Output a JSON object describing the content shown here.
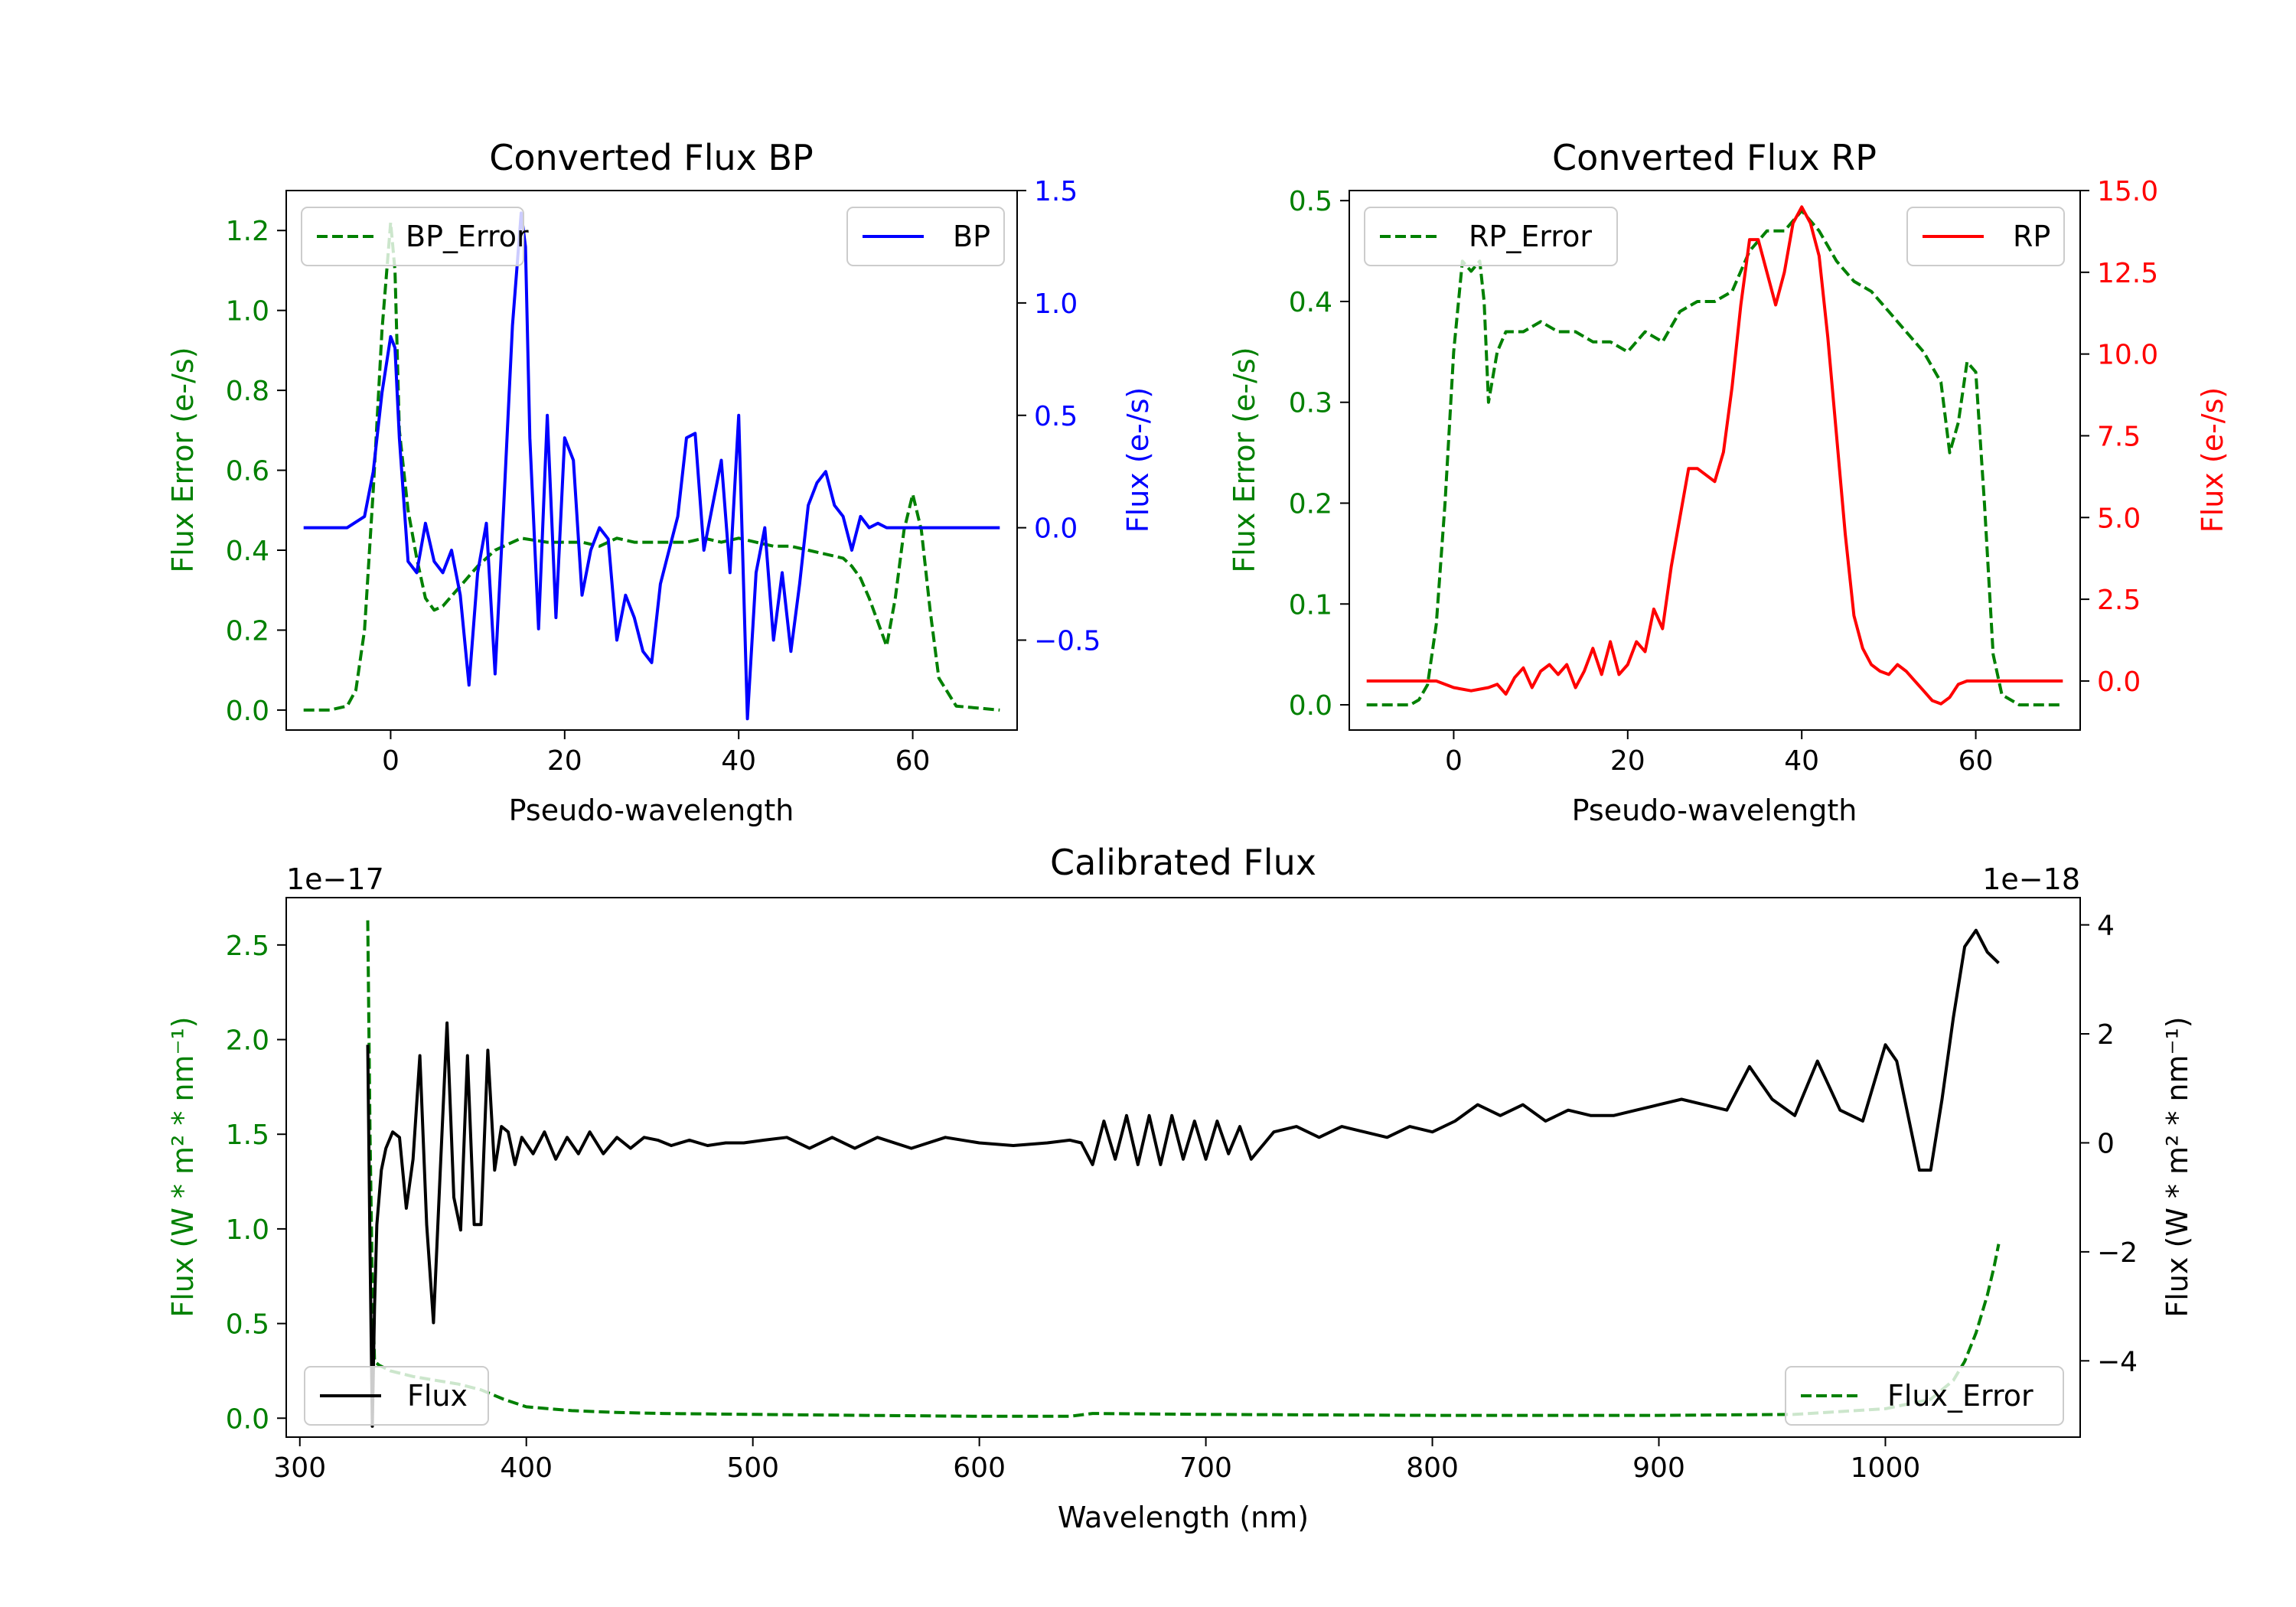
{
  "chart_data": [
    {
      "id": "bp",
      "type": "line",
      "title": "Converted Flux BP",
      "xlabel": "Pseudo-wavelength",
      "ylabel_left": "Flux Error (e-/s)",
      "ylabel_right": "Flux (e-/s)",
      "xlim": [
        -12,
        72
      ],
      "xticks": [
        0,
        20,
        40,
        60
      ],
      "ylim_left": [
        -0.05,
        1.3
      ],
      "yticks_left": [
        0.0,
        0.2,
        0.4,
        0.6,
        0.8,
        1.0,
        1.2
      ],
      "ylim_right": [
        -0.9,
        1.5
      ],
      "yticks_right": [
        -0.5,
        0.0,
        0.5,
        1.0,
        1.5
      ],
      "left_axis_color": "#008000",
      "right_axis_color": "#0000ff",
      "series": [
        {
          "name": "BP_Error",
          "axis": "left",
          "color": "#008000",
          "dash": true,
          "legend_loc": "upper left",
          "x": [
            -10,
            -7,
            -5,
            -4,
            -3,
            -2,
            -1,
            0,
            0.5,
            1,
            2,
            3,
            4,
            5,
            6,
            8,
            10,
            12,
            15,
            18,
            20,
            22,
            24,
            26,
            28,
            30,
            32,
            34,
            36,
            38,
            40,
            42,
            44,
            46,
            48,
            50,
            52,
            53,
            54,
            55,
            56,
            57,
            58,
            59,
            60,
            61,
            62,
            63,
            65,
            70
          ],
          "values": [
            0.0,
            0.0,
            0.01,
            0.05,
            0.2,
            0.55,
            0.95,
            1.22,
            1.1,
            0.7,
            0.5,
            0.38,
            0.28,
            0.25,
            0.26,
            0.31,
            0.36,
            0.4,
            0.43,
            0.42,
            0.42,
            0.42,
            0.41,
            0.43,
            0.42,
            0.42,
            0.42,
            0.42,
            0.43,
            0.42,
            0.43,
            0.42,
            0.41,
            0.41,
            0.4,
            0.39,
            0.38,
            0.36,
            0.33,
            0.28,
            0.22,
            0.16,
            0.28,
            0.45,
            0.54,
            0.45,
            0.25,
            0.08,
            0.01,
            0.0
          ]
        },
        {
          "name": "BP",
          "axis": "right",
          "color": "#0000ff",
          "dash": false,
          "legend_loc": "upper right",
          "x": [
            -10,
            -5,
            -3,
            -2,
            -1,
            0,
            0.5,
            1,
            2,
            3,
            4,
            5,
            6,
            7,
            8,
            9,
            10,
            11,
            12,
            13,
            14,
            15,
            15.5,
            16,
            17,
            18,
            19,
            20,
            21,
            22,
            23,
            24,
            25,
            26,
            27,
            28,
            29,
            30,
            31,
            32,
            33,
            34,
            35,
            36,
            37,
            38,
            39,
            40,
            41,
            42,
            43,
            44,
            45,
            46,
            47,
            48,
            49,
            50,
            51,
            52,
            53,
            54,
            55,
            56,
            57,
            58,
            59,
            60,
            61,
            62,
            64,
            70
          ],
          "values": [
            0.0,
            0.0,
            0.05,
            0.25,
            0.6,
            0.85,
            0.8,
            0.4,
            -0.15,
            -0.2,
            0.02,
            -0.15,
            -0.2,
            -0.1,
            -0.3,
            -0.7,
            -0.2,
            0.02,
            -0.65,
            0.1,
            0.9,
            1.4,
            1.25,
            0.4,
            -0.45,
            0.5,
            -0.4,
            0.4,
            0.3,
            -0.3,
            -0.1,
            0.0,
            -0.05,
            -0.5,
            -0.3,
            -0.4,
            -0.55,
            -0.6,
            -0.25,
            -0.1,
            0.05,
            0.4,
            0.42,
            -0.1,
            0.1,
            0.3,
            -0.2,
            0.5,
            -0.85,
            -0.2,
            0.0,
            -0.5,
            -0.2,
            -0.55,
            -0.25,
            0.1,
            0.2,
            0.25,
            0.1,
            0.05,
            -0.1,
            0.05,
            0.0,
            0.02,
            0.0,
            0.0,
            0.0,
            0.0,
            0.0,
            0.0,
            0.0,
            0.0
          ]
        }
      ]
    },
    {
      "id": "rp",
      "type": "line",
      "title": "Converted Flux RP",
      "xlabel": "Pseudo-wavelength",
      "ylabel_left": "Flux Error (e-/s)",
      "ylabel_right": "Flux (e-/s)",
      "xlim": [
        -12,
        72
      ],
      "xticks": [
        0,
        20,
        40,
        60
      ],
      "ylim_left": [
        -0.025,
        0.51
      ],
      "yticks_left": [
        0.0,
        0.1,
        0.2,
        0.3,
        0.4,
        0.5
      ],
      "ylim_right": [
        -1.5,
        15.0
      ],
      "yticks_right": [
        0.0,
        2.5,
        5.0,
        7.5,
        10.0,
        12.5,
        15.0
      ],
      "left_axis_color": "#008000",
      "right_axis_color": "#ff0000",
      "series": [
        {
          "name": "RP_Error",
          "axis": "left",
          "color": "#008000",
          "dash": true,
          "legend_loc": "upper left",
          "x": [
            -10,
            -5,
            -4,
            -3,
            -2,
            -1,
            0,
            1,
            2,
            3,
            3.5,
            4,
            5,
            6,
            8,
            10,
            12,
            14,
            16,
            18,
            20,
            22,
            24,
            26,
            28,
            30,
            32,
            34,
            36,
            38,
            40,
            42,
            44,
            46,
            48,
            50,
            52,
            54,
            56,
            57,
            58,
            59,
            60,
            61,
            62,
            63,
            65,
            70
          ],
          "values": [
            0.0,
            0.0,
            0.005,
            0.02,
            0.08,
            0.2,
            0.35,
            0.44,
            0.43,
            0.44,
            0.4,
            0.3,
            0.35,
            0.37,
            0.37,
            0.38,
            0.37,
            0.37,
            0.36,
            0.36,
            0.35,
            0.37,
            0.36,
            0.39,
            0.4,
            0.4,
            0.41,
            0.45,
            0.47,
            0.47,
            0.49,
            0.47,
            0.44,
            0.42,
            0.41,
            0.39,
            0.37,
            0.35,
            0.32,
            0.25,
            0.28,
            0.34,
            0.33,
            0.2,
            0.05,
            0.01,
            0.0,
            0.0
          ]
        },
        {
          "name": "RP",
          "axis": "right",
          "color": "#ff0000",
          "dash": false,
          "legend_loc": "upper right",
          "x": [
            -10,
            -5,
            -2,
            0,
            2,
            4,
            5,
            6,
            7,
            8,
            9,
            10,
            11,
            12,
            13,
            14,
            15,
            16,
            17,
            18,
            19,
            20,
            21,
            22,
            23,
            24,
            25,
            26,
            27,
            28,
            29,
            30,
            31,
            32,
            33,
            34,
            35,
            36,
            37,
            38,
            39,
            40,
            41,
            42,
            43,
            44,
            45,
            46,
            47,
            48,
            49,
            50,
            51,
            52,
            53,
            54,
            55,
            56,
            57,
            58,
            59,
            60,
            62,
            65,
            70
          ],
          "values": [
            0.0,
            0.0,
            0.0,
            -0.2,
            -0.3,
            -0.2,
            -0.1,
            -0.4,
            0.1,
            0.4,
            -0.2,
            0.3,
            0.5,
            0.2,
            0.5,
            -0.2,
            0.3,
            1.0,
            0.2,
            1.2,
            0.2,
            0.5,
            1.2,
            0.9,
            2.2,
            1.6,
            3.5,
            5.0,
            6.5,
            6.5,
            6.3,
            6.1,
            7.0,
            9.0,
            11.5,
            13.5,
            13.5,
            12.5,
            11.5,
            12.5,
            14.0,
            14.5,
            14.0,
            13.0,
            10.5,
            7.5,
            4.5,
            2.0,
            1.0,
            0.5,
            0.3,
            0.2,
            0.5,
            0.3,
            0.0,
            -0.3,
            -0.6,
            -0.7,
            -0.5,
            -0.1,
            0.0,
            0.0,
            0.0,
            0.0,
            0.0
          ]
        }
      ]
    },
    {
      "id": "calibrated",
      "type": "line",
      "title": "Calibrated Flux",
      "xlabel": "Wavelength (nm)",
      "ylabel_left": "Flux (W * m² * nm⁻¹)",
      "ylabel_right": "Flux (W * m² * nm⁻¹)",
      "left_scale_label": "1e−17",
      "right_scale_label": "1e−18",
      "xlim": [
        294,
        1086
      ],
      "xticks": [
        300,
        400,
        500,
        600,
        700,
        800,
        900,
        1000
      ],
      "ylim_left": [
        -0.1,
        2.75
      ],
      "yticks_left": [
        0.0,
        0.5,
        1.0,
        1.5,
        2.0,
        2.5
      ],
      "ylim_right": [
        -5.4,
        4.5
      ],
      "yticks_right": [
        -4,
        -2,
        0,
        2,
        4
      ],
      "left_axis_color": "#008000",
      "right_axis_color": "#000000",
      "series": [
        {
          "name": "Flux_Error",
          "axis": "left",
          "color": "#008000",
          "dash": true,
          "legend_loc": "lower right",
          "x": [
            330,
            331,
            332,
            333,
            335,
            340,
            350,
            360,
            370,
            380,
            390,
            400,
            420,
            440,
            460,
            500,
            550,
            600,
            640,
            650,
            700,
            800,
            900,
            960,
            1000,
            1020,
            1030,
            1035,
            1040,
            1045,
            1048,
            1050
          ],
          "values": [
            2.63,
            1.5,
            0.7,
            0.3,
            0.28,
            0.25,
            0.22,
            0.2,
            0.18,
            0.15,
            0.1,
            0.06,
            0.04,
            0.03,
            0.025,
            0.02,
            0.015,
            0.01,
            0.01,
            0.025,
            0.02,
            0.015,
            0.015,
            0.02,
            0.05,
            0.1,
            0.2,
            0.3,
            0.45,
            0.65,
            0.8,
            0.92
          ]
        },
        {
          "name": "Flux",
          "axis": "right",
          "color": "#000000",
          "dash": false,
          "legend_loc": "lower left",
          "x": [
            330,
            331,
            332,
            333,
            334,
            336,
            338,
            341,
            344,
            347,
            350,
            353,
            356,
            359,
            362,
            365,
            368,
            371,
            374,
            377,
            380,
            383,
            386,
            389,
            392,
            395,
            398,
            403,
            408,
            413,
            418,
            423,
            428,
            434,
            440,
            446,
            452,
            458,
            464,
            472,
            480,
            488,
            496,
            505,
            515,
            525,
            535,
            545,
            555,
            570,
            585,
            600,
            615,
            630,
            640,
            645,
            650,
            655,
            660,
            665,
            670,
            675,
            680,
            685,
            690,
            695,
            700,
            705,
            710,
            715,
            720,
            730,
            740,
            750,
            760,
            770,
            780,
            790,
            800,
            810,
            820,
            830,
            840,
            850,
            860,
            870,
            880,
            890,
            900,
            910,
            920,
            930,
            940,
            950,
            960,
            970,
            980,
            990,
            1000,
            1005,
            1010,
            1015,
            1020,
            1025,
            1030,
            1035,
            1040,
            1045,
            1050
          ],
          "values": [
            1.8,
            -2.0,
            -5.2,
            -3.0,
            -1.5,
            -0.5,
            -0.1,
            0.2,
            0.1,
            -1.2,
            -0.3,
            1.6,
            -1.5,
            -3.3,
            -0.5,
            2.2,
            -1.0,
            -1.6,
            1.6,
            -1.5,
            -1.5,
            1.7,
            -0.5,
            0.3,
            0.2,
            -0.4,
            0.1,
            -0.2,
            0.2,
            -0.3,
            0.1,
            -0.2,
            0.2,
            -0.2,
            0.1,
            -0.1,
            0.1,
            0.05,
            -0.05,
            0.05,
            -0.05,
            0.0,
            0.0,
            0.05,
            0.1,
            -0.1,
            0.1,
            -0.1,
            0.1,
            -0.1,
            0.1,
            0.0,
            -0.05,
            0.0,
            0.05,
            0.0,
            -0.4,
            0.4,
            -0.3,
            0.5,
            -0.4,
            0.5,
            -0.4,
            0.5,
            -0.3,
            0.4,
            -0.3,
            0.4,
            -0.2,
            0.3,
            -0.3,
            0.2,
            0.3,
            0.1,
            0.3,
            0.2,
            0.1,
            0.3,
            0.2,
            0.4,
            0.7,
            0.5,
            0.7,
            0.4,
            0.6,
            0.5,
            0.5,
            0.6,
            0.7,
            0.8,
            0.7,
            0.6,
            1.4,
            0.8,
            0.5,
            1.5,
            0.6,
            0.4,
            1.8,
            1.5,
            0.5,
            -0.5,
            -0.5,
            0.8,
            2.3,
            3.6,
            3.9,
            3.5,
            3.3
          ]
        }
      ]
    }
  ]
}
